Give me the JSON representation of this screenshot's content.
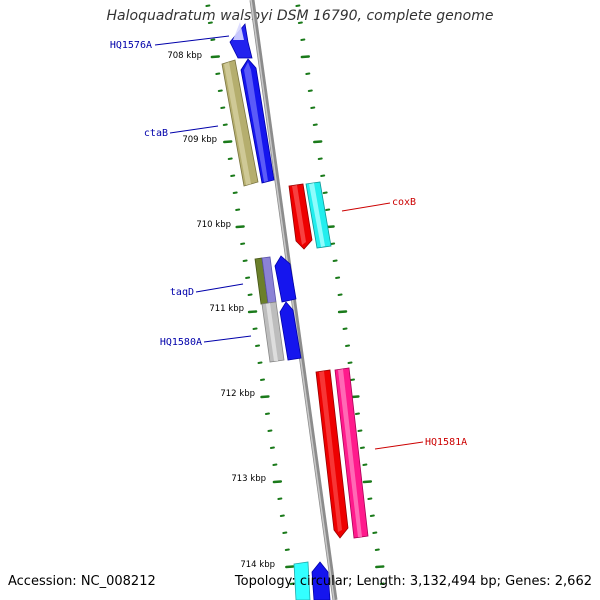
{
  "title": "Haloquadratum walsbyi DSM 16790, complete genome",
  "accession": "Accession: NC_008212",
  "topology": "Topology: circular; Length: 3,132,494 bp; Genes: 2,662",
  "colors": {
    "backbone": "#8c8c8c",
    "ticks": "#1a7a1a",
    "forward_label": "#0000aa",
    "reverse_label": "#cc0000"
  },
  "kbp_labels": [
    "708 kbp",
    "709 kbp",
    "710 kbp",
    "711 kbp",
    "712 kbp",
    "713 kbp",
    "714 kbp"
  ],
  "genes": [
    {
      "label": "HQ1576A",
      "strand": "forward",
      "color": "#0000ee"
    },
    {
      "label": "ctaB",
      "strand": "forward",
      "color": "#b5ae6e"
    },
    {
      "label": "coxB",
      "strand": "reverse",
      "color": "#ee0000"
    },
    {
      "label": "taqD",
      "strand": "forward",
      "color": "#6b7f2a"
    },
    {
      "label": "HQ1580A",
      "strand": "forward",
      "color": "#bdbdbd"
    },
    {
      "label": "HQ1581A",
      "strand": "reverse",
      "color": "#ff1a8c"
    }
  ]
}
